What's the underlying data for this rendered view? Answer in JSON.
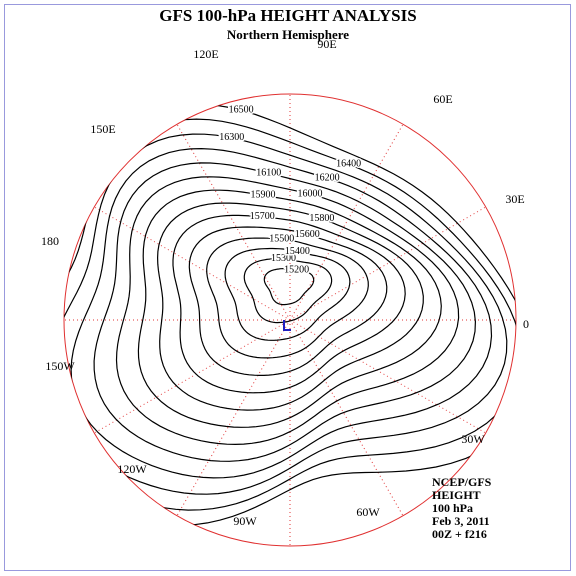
{
  "header": {
    "title": "GFS 100-hPa HEIGHT ANALYSIS",
    "subtitle": "Northern Hemisphere"
  },
  "map": {
    "longitude_labels": [
      "0",
      "30E",
      "60E",
      "90E",
      "120E",
      "150E",
      "180",
      "150W",
      "120W",
      "90W",
      "60W",
      "30W"
    ]
  },
  "contours": {
    "levels": [
      15200,
      15300,
      15400,
      15500,
      15600,
      15700,
      15800,
      15900,
      16000,
      16100,
      16200,
      16300,
      16400,
      16500
    ]
  },
  "info": {
    "lines": [
      "NCEP/GFS",
      "HEIGHT",
      "100 hPa",
      "Feb 3, 2011",
      "00Z + f216"
    ]
  }
}
